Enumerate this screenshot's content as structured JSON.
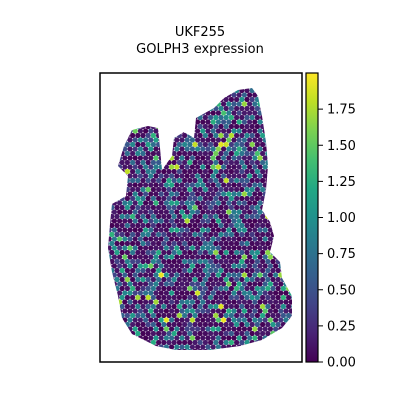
{
  "chart_data": {
    "type": "scatter",
    "title_lines": [
      "UKF255",
      "GOLPH3 expression"
    ],
    "colorbar": {
      "colormap": "viridis",
      "range": [
        0.0,
        2.0
      ],
      "ticks": [
        "0.00",
        "0.25",
        "0.50",
        "0.75",
        "1.00",
        "1.25",
        "1.50",
        "1.75"
      ]
    },
    "spots": {
      "description_free": true,
      "layout": "hexagonal spatial transcriptomics grid",
      "value_distribution": {
        "mostly_low_near": 0.0,
        "scattered_mid": [
          0.5,
          1.0
        ],
        "rare_high_up_to": 1.95
      }
    },
    "xlabel": "",
    "ylabel": "",
    "axis_ticks_visible": false,
    "grid": false
  }
}
